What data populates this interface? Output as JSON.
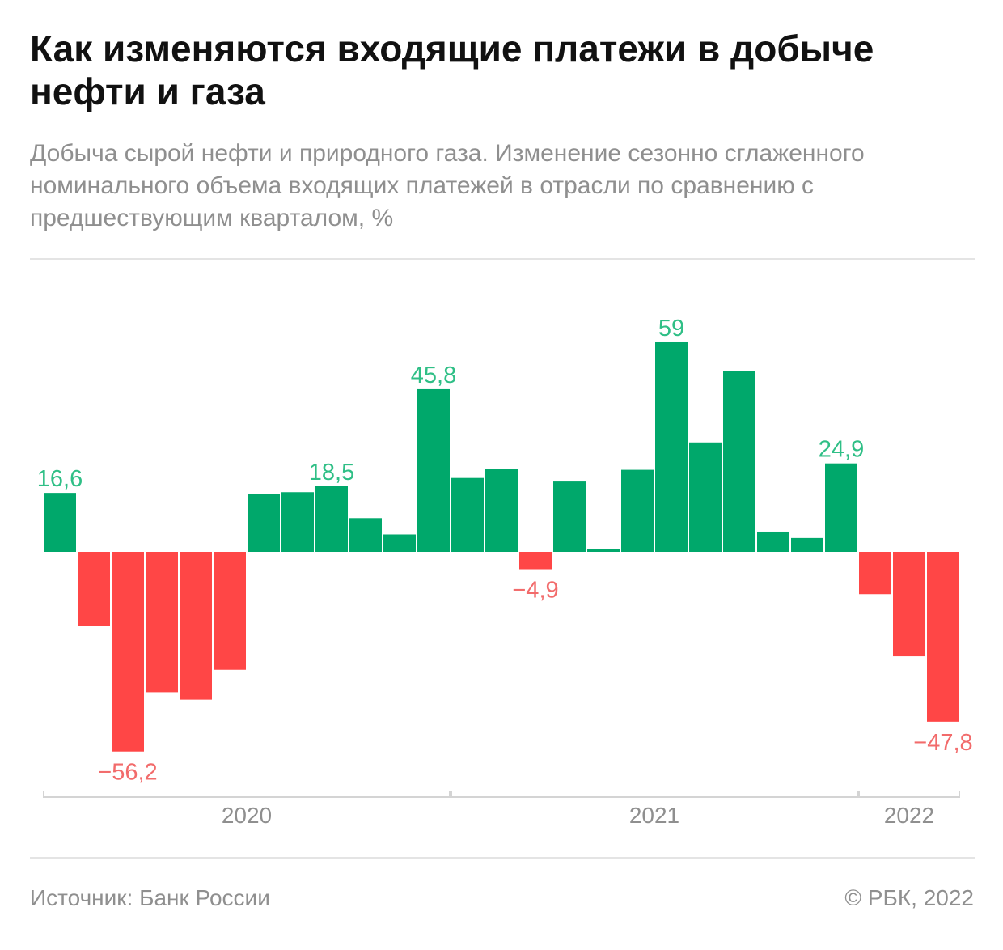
{
  "chart_data": {
    "type": "bar",
    "title": "Как изменяются входящие платежи в добыче нефти и газа",
    "subtitle": "Добыча сырой нефти и природного газа. Изменение сезонно сглаженного номинального объема входящих платежей в отрасли по сравнению с предшествующим кварталом, %",
    "ylim": [
      -60,
      62
    ],
    "grid": false,
    "legend": "none",
    "colors": {
      "positive": "#00a86b",
      "negative": "#ff4646",
      "positive_label": "#2fbf86",
      "negative_label": "#f26b6b"
    },
    "values": [
      16.6,
      -20.8,
      -56.2,
      -39.5,
      -41.6,
      -33.2,
      16.2,
      16.8,
      18.5,
      9.5,
      4.9,
      45.8,
      20.8,
      23.4,
      -4.9,
      19.8,
      0.8,
      23.1,
      59,
      30.8,
      50.8,
      5.7,
      3.9,
      24.9,
      -11.9,
      -29.4,
      -47.8
    ],
    "value_labels": [
      {
        "index": 0,
        "text": "16,6"
      },
      {
        "index": 2,
        "text": "−56,2"
      },
      {
        "index": 8,
        "text": "18,5"
      },
      {
        "index": 11,
        "text": "45,8"
      },
      {
        "index": 14,
        "text": "−4,9"
      },
      {
        "index": 18,
        "text": "59"
      },
      {
        "index": 23,
        "text": "24,9"
      },
      {
        "index": 26,
        "text": "−47,8"
      }
    ],
    "year_groups": [
      {
        "label": "2020",
        "start": 0,
        "end": 11
      },
      {
        "label": "2021",
        "start": 12,
        "end": 23
      },
      {
        "label": "2022",
        "start": 24,
        "end": 26
      }
    ]
  },
  "footer": {
    "source": "Источник: Банк России",
    "copyright": "© РБК, 2022"
  }
}
